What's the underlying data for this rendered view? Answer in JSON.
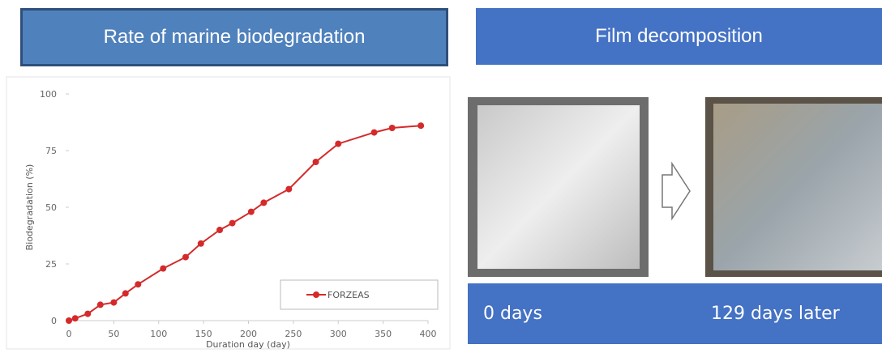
{
  "left_header": "Rate of marine biodegradation",
  "right_header": "Film decomposition",
  "captions": [
    "0 days",
    "129 days later"
  ],
  "chart_data": {
    "type": "line",
    "x_label": "Duration day (day)",
    "y_label": "Biodegradation (%)",
    "x": [
      0,
      7,
      21,
      35,
      50,
      63,
      77,
      105,
      130,
      147,
      168,
      182,
      203,
      217,
      245,
      275,
      300,
      340,
      360,
      392
    ],
    "series": [
      {
        "name": "FORZEAS",
        "color": "#d42a2a",
        "values": [
          0,
          1,
          3,
          7,
          8,
          12,
          16,
          23,
          28,
          34,
          40,
          43,
          48,
          52,
          58,
          70,
          78,
          83,
          85,
          86
        ]
      }
    ],
    "xlim": [
      0,
      400
    ],
    "xticks": [
      0,
      50,
      100,
      150,
      200,
      250,
      300,
      350,
      400
    ],
    "ylim": [
      0,
      100
    ],
    "yticks": [
      0,
      25,
      50,
      75,
      100
    ],
    "grid": false,
    "legend": "lower right"
  }
}
